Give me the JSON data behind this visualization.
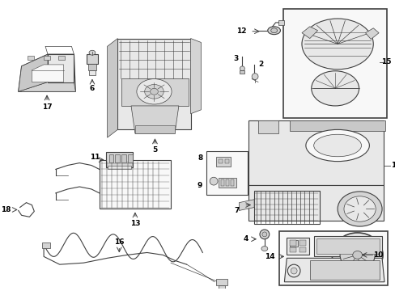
{
  "bg_color": "#ffffff",
  "line_color": "#404040",
  "label_color": "#000000",
  "fig_width": 4.89,
  "fig_height": 3.6,
  "dpi": 100,
  "label_fontsize": 6.5,
  "lw_main": 0.8,
  "lw_thin": 0.5,
  "lw_thick": 1.2,
  "gray_fill": "#c8c8c8",
  "light_fill": "#e8e8e8",
  "mid_fill": "#d4d4d4",
  "white_fill": "#f8f8f8"
}
